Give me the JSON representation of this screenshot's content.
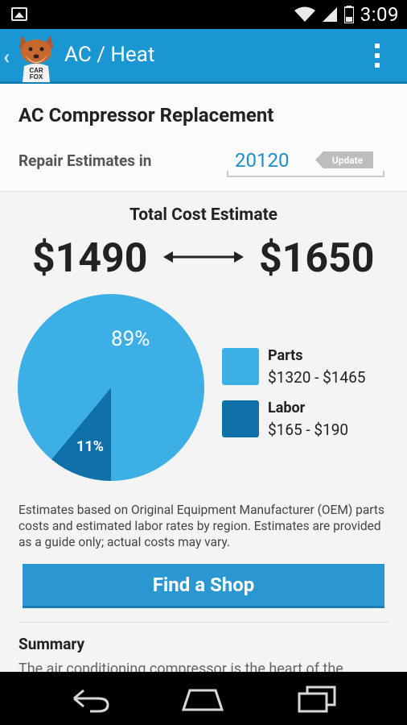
{
  "status_bar": {
    "time": "3:09",
    "icons": [
      "image-icon",
      "wifi-icon",
      "signal-icon",
      "battery-icon"
    ]
  },
  "app_bar": {
    "title": "AC / Heat",
    "logo_text_top": "CAR",
    "logo_text_bottom": "FOX",
    "background_color": "#1a96d2"
  },
  "header": {
    "repair_title": "AC Compressor Replacement",
    "estimates_label": "Repair Estimates in",
    "zip_code": "20120",
    "update_label": "Update"
  },
  "estimate": {
    "total_label": "Total Cost Estimate",
    "low_price": "$1490",
    "high_price": "$1650"
  },
  "chart_data": {
    "type": "pie",
    "slices": [
      {
        "label": "Parts",
        "value": 89,
        "display": "89%",
        "color": "#3cb0e6"
      },
      {
        "label": "Labor",
        "value": 11,
        "display": "11%",
        "color": "#0f71a8"
      }
    ],
    "legend": [
      {
        "name": "Parts",
        "range": "$1320 - $1465",
        "color": "#3cb0e6"
      },
      {
        "name": "Labor",
        "range": "$165 - $190",
        "color": "#0f71a8"
      }
    ],
    "legend_position": "right"
  },
  "disclaimer": "Estimates based on Original Equipment Manufacturer (OEM) parts costs and estimated labor rates by region. Estimates are provided as a guide only; actual costs may vary.",
  "find_shop_label": "Find a Shop",
  "summary": {
    "title": "Summary",
    "text": "The air conditioning compressor is the heart of the"
  },
  "nav_bar": {
    "icons": [
      "back-icon",
      "home-icon",
      "recent-apps-icon"
    ]
  }
}
